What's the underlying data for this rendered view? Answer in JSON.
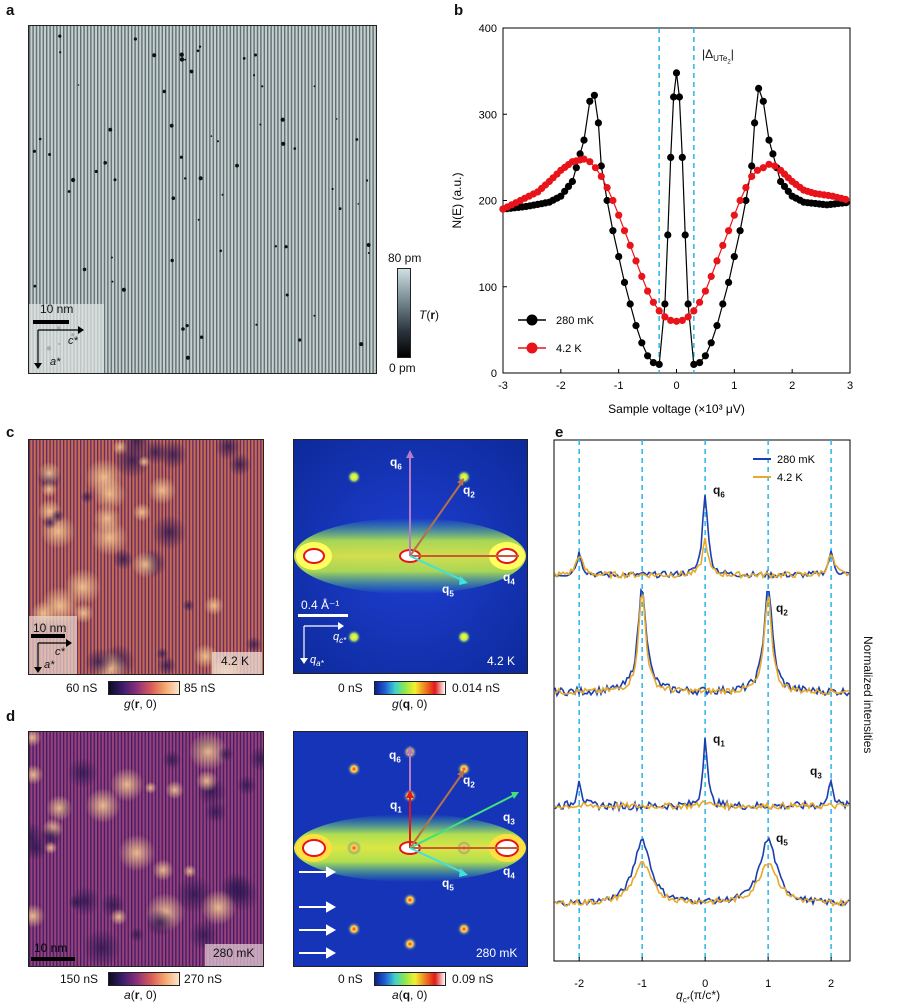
{
  "panels": {
    "a": {
      "letter": "a",
      "scalebar": "10 nm",
      "axis_c": "c*",
      "axis_a": "a*",
      "colorbar_top": "80 pm",
      "colorbar_bottom": "0 pm",
      "colorbar_label": "T(r)"
    },
    "b": {
      "letter": "b",
      "gap_label": "|Δ",
      "gap_sub": "UTe",
      "gap_sub2": "2",
      "gap_end": "|"
    },
    "c": {
      "letter": "c",
      "left_scalebar": "10 nm",
      "left_axis_c": "c*",
      "left_axis_a": "a*",
      "left_temp": "4.2 K",
      "left_cb_min": "60 nS",
      "left_cb_max": "85 nS",
      "left_cb_label": "g(r, 0)",
      "right_scalebar": "0.4 Å⁻¹",
      "right_axis_q": "q",
      "right_axis_qsub": "c*",
      "right_axis_g": "q",
      "right_axis_gsub": "a*",
      "right_temp": "4.2 K",
      "right_cb_min": "0 nS",
      "right_cb_max": "0.014 nS",
      "right_cb_label": "g(q, 0)",
      "q_labels": [
        "q6",
        "q2",
        "q4",
        "q5"
      ]
    },
    "d": {
      "letter": "d",
      "left_scalebar": "10 nm",
      "left_temp": "280 mK",
      "left_cb_min": "150 nS",
      "left_cb_max": "270 nS",
      "left_cb_label": "a(r, 0)",
      "right_temp": "280 mK",
      "right_cb_min": "0 nS",
      "right_cb_max": "0.09 nS",
      "right_cb_label": "a(q, 0)",
      "q_labels": [
        "q6",
        "q2",
        "q1",
        "q3",
        "q4",
        "q5"
      ]
    },
    "e": {
      "letter": "e",
      "ylabel": "Normalized intensities",
      "xlabel": "q",
      "xlabel_sub": "c*",
      "xlabel_unit": "(π/c*)",
      "trace_labels": [
        "q6",
        "q2",
        "q1",
        "q3",
        "q5"
      ]
    }
  },
  "colors": {
    "red": "#e8141a",
    "black": "#000000",
    "blue": "#1a3fb0",
    "gold": "#e8a92a",
    "cyan_dash": "#29b6e8"
  },
  "chart_data": [
    {
      "type": "line",
      "title": "",
      "xlabel": "Sample voltage (×10³ μV)",
      "ylabel": "N(E) (a.u.)",
      "xlim": [
        -3,
        3
      ],
      "ylim": [
        0,
        400
      ],
      "xticks": [
        -3,
        -2,
        -1,
        0,
        1,
        2,
        3
      ],
      "yticks": [
        0,
        100,
        200,
        300,
        400
      ],
      "vlines": [
        -0.3,
        0.3
      ],
      "legend_position": "bottom-left",
      "series": [
        {
          "name": "280 mK",
          "color": "#000000",
          "x": [
            -3.0,
            -2.6,
            -2.2,
            -2.0,
            -1.8,
            -1.6,
            -1.5,
            -1.42,
            -1.35,
            -1.3,
            -1.2,
            -1.1,
            -1.0,
            -0.9,
            -0.8,
            -0.7,
            -0.6,
            -0.5,
            -0.4,
            -0.3,
            -0.2,
            -0.15,
            -0.1,
            -0.05,
            0.0,
            0.05,
            0.1,
            0.15,
            0.2,
            0.3,
            0.4,
            0.5,
            0.6,
            0.7,
            0.8,
            0.9,
            1.0,
            1.1,
            1.2,
            1.3,
            1.35,
            1.42,
            1.5,
            1.6,
            1.8,
            2.0,
            2.2,
            2.6,
            3.0
          ],
          "y": [
            190,
            193,
            198,
            205,
            222,
            270,
            315,
            322,
            290,
            240,
            200,
            165,
            135,
            105,
            80,
            55,
            35,
            20,
            12,
            10,
            80,
            160,
            250,
            320,
            348,
            320,
            250,
            160,
            80,
            10,
            12,
            20,
            35,
            55,
            80,
            105,
            135,
            165,
            200,
            240,
            290,
            330,
            315,
            270,
            222,
            205,
            198,
            195,
            198
          ]
        },
        {
          "name": "4.2 K",
          "color": "#e8141a",
          "x": [
            -3.0,
            -2.7,
            -2.4,
            -2.2,
            -2.0,
            -1.8,
            -1.6,
            -1.5,
            -1.4,
            -1.3,
            -1.2,
            -1.1,
            -1.0,
            -0.9,
            -0.8,
            -0.7,
            -0.6,
            -0.5,
            -0.4,
            -0.3,
            -0.2,
            -0.1,
            0.0,
            0.1,
            0.2,
            0.3,
            0.4,
            0.5,
            0.6,
            0.7,
            0.8,
            0.9,
            1.0,
            1.1,
            1.2,
            1.3,
            1.4,
            1.5,
            1.6,
            1.7,
            1.8,
            2.0,
            2.2,
            2.4,
            2.7,
            3.0
          ],
          "y": [
            190,
            200,
            210,
            222,
            235,
            245,
            248,
            245,
            238,
            228,
            215,
            200,
            183,
            165,
            148,
            130,
            112,
            95,
            82,
            72,
            65,
            61,
            60,
            61,
            65,
            72,
            82,
            95,
            112,
            130,
            148,
            165,
            183,
            200,
            215,
            228,
            235,
            238,
            242,
            240,
            235,
            222,
            212,
            208,
            205,
            200
          ]
        }
      ]
    },
    {
      "type": "line",
      "title": "",
      "xlabel": "qc* (π/c*)",
      "ylabel": "Normalized intensities",
      "xlim": [
        -2.4,
        2.3
      ],
      "xticks": [
        -2,
        -1,
        0,
        1,
        2
      ],
      "vlines": [
        -2,
        -1,
        0,
        1,
        2
      ],
      "legend_position": "top-right",
      "series": [
        {
          "name": "280 mK",
          "color": "#1a3fb0"
        },
        {
          "name": "4.2 K",
          "color": "#e8a92a"
        }
      ]
    }
  ]
}
